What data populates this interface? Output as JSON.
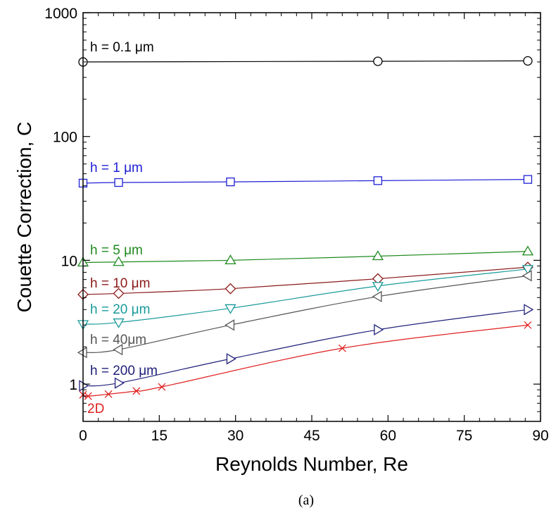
{
  "chart_data": {
    "type": "line",
    "xlabel": "Reynolds Number, Re",
    "ylabel": "Couette Correction, C",
    "xlim": [
      0,
      90
    ],
    "ylim": [
      0.5,
      1000
    ],
    "yscale": "log",
    "x_ticks": [
      0,
      15,
      30,
      45,
      60,
      75,
      90
    ],
    "x_tick_labels": [
      "0",
      "15",
      "30",
      "45",
      "60",
      "75",
      "90"
    ],
    "y_ticks": [
      1,
      10,
      100,
      1000
    ],
    "y_tick_labels": [
      "1",
      "10",
      "100",
      "1000"
    ],
    "grid": false,
    "legend": "inline labels",
    "caption": "(a)",
    "series": [
      {
        "name": "h = 0.1 μm",
        "color": "#000000",
        "marker": "circle",
        "x": [
          0,
          58,
          87.5
        ],
        "y": [
          400,
          405,
          408
        ]
      },
      {
        "name": "h = 1 μm",
        "color": "#1f1fd6",
        "marker": "square",
        "x": [
          0,
          7,
          29,
          58,
          87.5
        ],
        "y": [
          42,
          42.5,
          43,
          44,
          45
        ]
      },
      {
        "name": "h = 5 μm",
        "color": "#1e8a1e",
        "marker": "triangle-up",
        "x": [
          0,
          7,
          29,
          58,
          87.5
        ],
        "y": [
          9.6,
          9.7,
          10.0,
          10.8,
          11.8
        ]
      },
      {
        "name": "h = 10 μm",
        "color": "#8b1a1a",
        "marker": "diamond",
        "x": [
          0,
          7,
          29,
          58,
          87.5
        ],
        "y": [
          5.3,
          5.4,
          5.9,
          7.1,
          8.8
        ]
      },
      {
        "name": "h = 20 μm",
        "color": "#1a9a9a",
        "marker": "triangle-down",
        "x": [
          0,
          7,
          29,
          58,
          87.5
        ],
        "y": [
          3.05,
          3.15,
          4.1,
          6.2,
          8.5
        ]
      },
      {
        "name": "h = 40μm",
        "color": "#555555",
        "marker": "triangle-left",
        "x": [
          0,
          7,
          29,
          58,
          87.5
        ],
        "y": [
          1.8,
          1.9,
          3.0,
          5.1,
          7.5
        ]
      },
      {
        "name": "h = 200 μm",
        "color": "#20207a",
        "marker": "triangle-right",
        "x": [
          0,
          7,
          29,
          58,
          87.5
        ],
        "y": [
          0.97,
          1.02,
          1.6,
          2.75,
          4.0
        ]
      },
      {
        "name": "2D",
        "color": "#e02020",
        "marker": "x",
        "x": [
          0,
          1,
          5,
          10.5,
          15.5,
          51,
          87.5
        ],
        "y": [
          0.82,
          0.8,
          0.83,
          0.88,
          0.95,
          1.95,
          3.0
        ]
      }
    ]
  }
}
